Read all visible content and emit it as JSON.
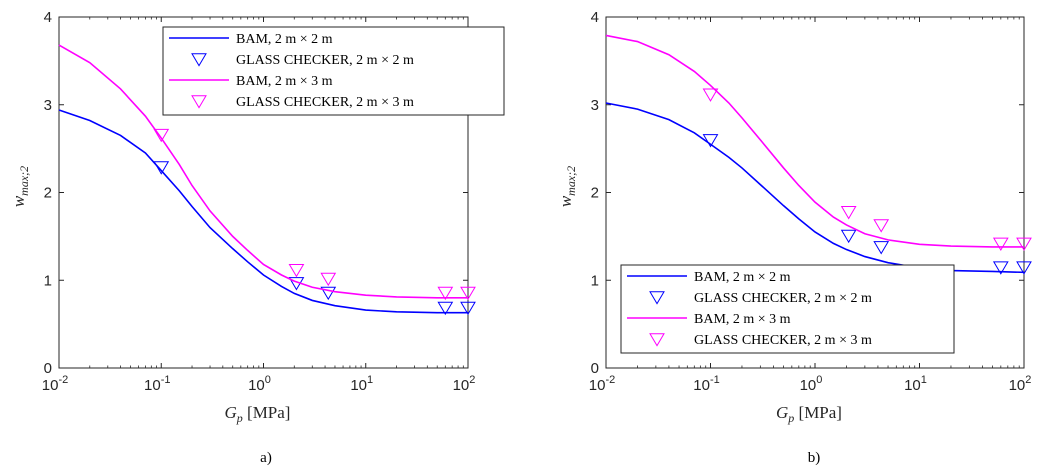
{
  "chart_data": [
    {
      "type": "line",
      "caption": "a)",
      "xscale": "log",
      "xlim": [
        0.01,
        100
      ],
      "ylim": [
        0,
        4
      ],
      "xticks": [
        0.01,
        0.1,
        1,
        10,
        100
      ],
      "xtick_labels": [
        [
          "10",
          "-2"
        ],
        [
          "10",
          "-1"
        ],
        [
          "10",
          "0"
        ],
        [
          "10",
          "1"
        ],
        [
          "10",
          "2"
        ]
      ],
      "yticks": [
        0,
        1,
        2,
        3,
        4
      ],
      "ytick_labels": [
        "0",
        "1",
        "2",
        "3",
        "4"
      ],
      "xlabel": "G_p [MPa]",
      "xlabel_parts": {
        "main": "G",
        "sub": "p",
        "rest": " [MPa]"
      },
      "ylabel": "w_max;2",
      "ylabel_parts": {
        "main": "w",
        "sub": "max;2"
      },
      "grid": false,
      "legend_placement": "top-right",
      "series": [
        {
          "name": "BAM, 2 m × 2 m",
          "kind": "line",
          "color": "#0000ff",
          "x": [
            0.01,
            0.02,
            0.04,
            0.07,
            0.1,
            0.15,
            0.2,
            0.3,
            0.5,
            0.7,
            1,
            1.5,
            2,
            3,
            5,
            10,
            20,
            50,
            100
          ],
          "y": [
            2.94,
            2.82,
            2.65,
            2.45,
            2.25,
            2.02,
            1.84,
            1.6,
            1.36,
            1.21,
            1.06,
            0.93,
            0.85,
            0.77,
            0.71,
            0.66,
            0.64,
            0.63,
            0.63
          ]
        },
        {
          "name": "GLASS CHECKER, 2 m × 2 m",
          "kind": "marker",
          "color": "#0000ff",
          "x": [
            0.1,
            2.1,
            4.3,
            60,
            100
          ],
          "y": [
            2.29,
            0.97,
            0.86,
            0.69,
            0.69
          ]
        },
        {
          "name": "BAM, 2 m × 3 m",
          "kind": "line",
          "color": "#ff00ff",
          "x": [
            0.01,
            0.02,
            0.04,
            0.07,
            0.1,
            0.15,
            0.2,
            0.3,
            0.5,
            0.7,
            1,
            1.5,
            2,
            3,
            5,
            10,
            20,
            50,
            100
          ],
          "y": [
            3.68,
            3.48,
            3.18,
            2.87,
            2.62,
            2.32,
            2.08,
            1.79,
            1.5,
            1.34,
            1.18,
            1.06,
            0.99,
            0.92,
            0.87,
            0.83,
            0.81,
            0.8,
            0.8
          ]
        },
        {
          "name": "GLASS CHECKER, 2 m × 3 m",
          "kind": "marker",
          "color": "#ff00ff",
          "x": [
            0.1,
            2.1,
            4.3,
            60,
            100
          ],
          "y": [
            2.66,
            1.12,
            1.02,
            0.86,
            0.86
          ]
        }
      ]
    },
    {
      "type": "line",
      "caption": "b)",
      "xscale": "log",
      "xlim": [
        0.01,
        100
      ],
      "ylim": [
        0,
        4
      ],
      "xticks": [
        0.01,
        0.1,
        1,
        10,
        100
      ],
      "xtick_labels": [
        [
          "10",
          "-2"
        ],
        [
          "10",
          "-1"
        ],
        [
          "10",
          "0"
        ],
        [
          "10",
          "1"
        ],
        [
          "10",
          "2"
        ]
      ],
      "yticks": [
        0,
        1,
        2,
        3,
        4
      ],
      "ytick_labels": [
        "0",
        "1",
        "2",
        "3",
        "4"
      ],
      "xlabel": "G_p [MPa]",
      "xlabel_parts": {
        "main": "G",
        "sub": "p",
        "rest": " [MPa]"
      },
      "ylabel": "w_max;2",
      "ylabel_parts": {
        "main": "w",
        "sub": "max;2"
      },
      "grid": false,
      "legend_placement": "bottom-left",
      "series": [
        {
          "name": "BAM, 2 m × 2 m",
          "kind": "line",
          "color": "#0000ff",
          "x": [
            0.01,
            0.02,
            0.04,
            0.07,
            0.1,
            0.15,
            0.2,
            0.3,
            0.5,
            0.7,
            1,
            1.5,
            2,
            3,
            5,
            10,
            20,
            50,
            100
          ],
          "y": [
            3.02,
            2.95,
            2.83,
            2.68,
            2.55,
            2.4,
            2.28,
            2.09,
            1.85,
            1.7,
            1.55,
            1.42,
            1.35,
            1.27,
            1.2,
            1.14,
            1.11,
            1.1,
            1.09
          ]
        },
        {
          "name": "GLASS CHECKER, 2 m × 2 m",
          "kind": "marker",
          "color": "#0000ff",
          "x": [
            0.1,
            2.1,
            4.3,
            60,
            100
          ],
          "y": [
            2.6,
            1.51,
            1.38,
            1.15,
            1.15
          ]
        },
        {
          "name": "BAM, 2 m × 3 m",
          "kind": "line",
          "color": "#ff00ff",
          "x": [
            0.01,
            0.02,
            0.04,
            0.07,
            0.1,
            0.15,
            0.2,
            0.3,
            0.5,
            0.7,
            1,
            1.5,
            2,
            3,
            5,
            10,
            20,
            50,
            100
          ],
          "y": [
            3.79,
            3.72,
            3.57,
            3.38,
            3.22,
            3.02,
            2.85,
            2.6,
            2.28,
            2.08,
            1.89,
            1.72,
            1.63,
            1.53,
            1.46,
            1.41,
            1.39,
            1.38,
            1.38
          ]
        },
        {
          "name": "GLASS CHECKER, 2 m × 3 m",
          "kind": "marker",
          "color": "#ff00ff",
          "x": [
            0.1,
            2.1,
            4.3,
            60,
            100
          ],
          "y": [
            3.12,
            1.78,
            1.63,
            1.42,
            1.42
          ]
        }
      ]
    }
  ]
}
